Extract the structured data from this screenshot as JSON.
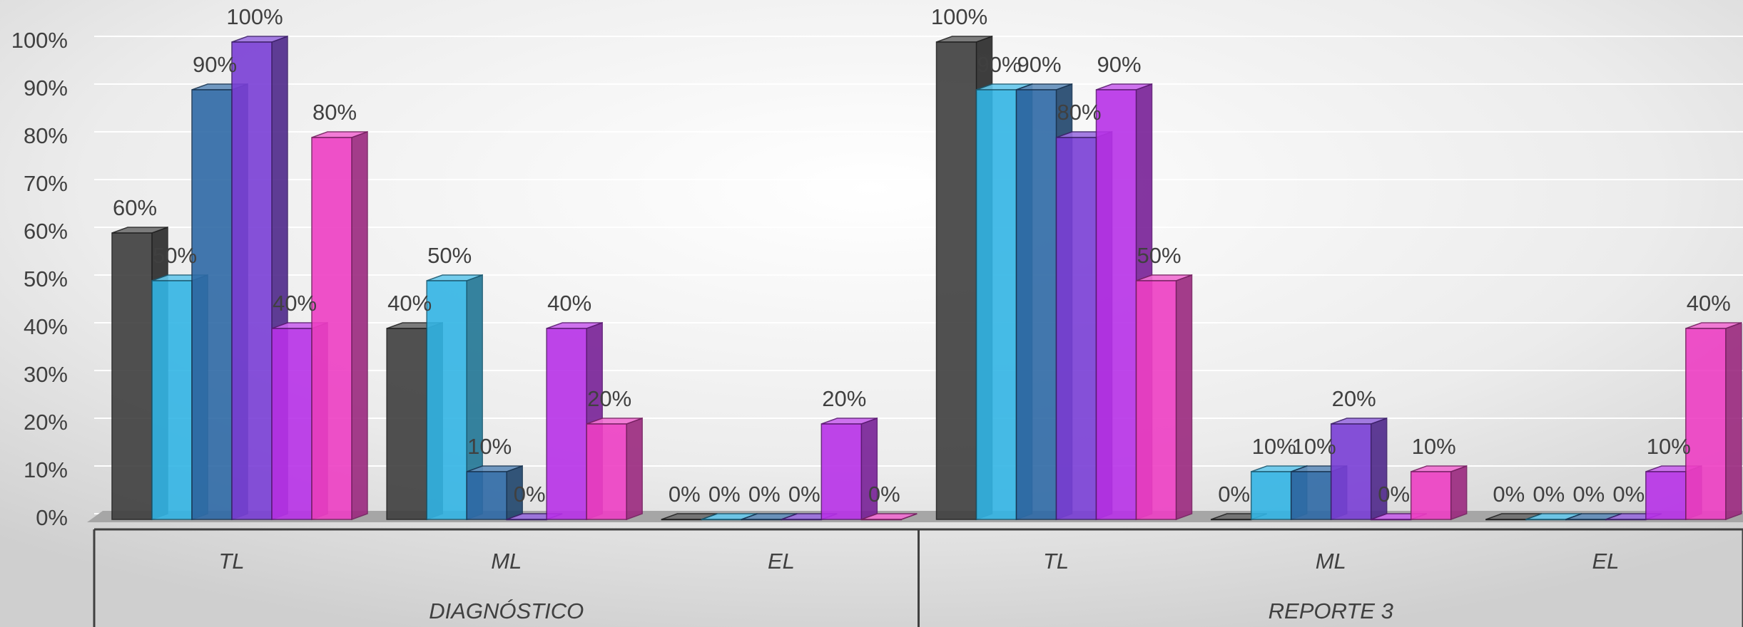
{
  "chart_data": {
    "type": "bar3d",
    "categories": [
      "TL",
      "ML",
      "EL",
      "TL",
      "ML",
      "EL"
    ],
    "category_groups": [
      "DIAGNÓSTICO",
      "REPORTE 3"
    ],
    "ylim": [
      0,
      100
    ],
    "yticks": [
      {
        "value": 0,
        "label": "0%"
      },
      {
        "value": 10,
        "label": "10%"
      },
      {
        "value": 20,
        "label": "20%"
      },
      {
        "value": 30,
        "label": "30%"
      },
      {
        "value": 40,
        "label": "40%"
      },
      {
        "value": 50,
        "label": "50%"
      },
      {
        "value": 60,
        "label": "60%"
      },
      {
        "value": 70,
        "label": "70%"
      },
      {
        "value": 80,
        "label": "80%"
      },
      {
        "value": 90,
        "label": "90%"
      },
      {
        "value": 100,
        "label": "100%"
      }
    ],
    "grid": true,
    "series": [
      {
        "color": "#3f3f3f",
        "values": [
          60,
          40,
          0,
          100,
          0,
          0
        ],
        "value_labels": [
          "60%",
          "40%",
          "0%",
          "100%",
          "0%",
          "0%"
        ]
      },
      {
        "color": "#33b5e5",
        "values": [
          50,
          50,
          0,
          90,
          10,
          0
        ],
        "value_labels": [
          "50%",
          "50%",
          "0%",
          "90%",
          "10%",
          "0%"
        ]
      },
      {
        "color": "#2f6aa6",
        "values": [
          90,
          10,
          0,
          90,
          10,
          0
        ],
        "value_labels": [
          "90%",
          "10%",
          "0%",
          "90%",
          "10%",
          "0%"
        ]
      },
      {
        "color": "#7a3fd6",
        "values": [
          100,
          0,
          0,
          80,
          20,
          0
        ],
        "value_labels": [
          "100%",
          "0%",
          "0%",
          "80%",
          "20%",
          "0%"
        ]
      },
      {
        "color": "#b832e8",
        "values": [
          40,
          40,
          20,
          90,
          0,
          10
        ],
        "value_labels": [
          "40%",
          "40%",
          "20%",
          "90%",
          "0%",
          "10%"
        ]
      },
      {
        "color": "#ee3fc4",
        "values": [
          80,
          20,
          0,
          50,
          10,
          40
        ],
        "value_labels": [
          "80%",
          "20%",
          "0%",
          "50%",
          "10%",
          "40%"
        ]
      }
    ]
  }
}
